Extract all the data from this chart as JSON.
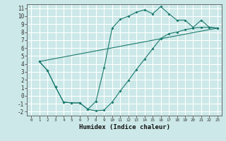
{
  "xlabel": "Humidex (Indice chaleur)",
  "bg_color": "#cce8e8",
  "grid_color": "#ffffff",
  "line_color": "#1a7a6e",
  "xlim": [
    -0.5,
    23.5
  ],
  "ylim": [
    -2.5,
    11.5
  ],
  "xticks": [
    0,
    1,
    2,
    3,
    4,
    5,
    6,
    7,
    8,
    9,
    10,
    11,
    12,
    13,
    14,
    15,
    16,
    17,
    18,
    19,
    20,
    21,
    22,
    23
  ],
  "yticks": [
    -2,
    -1,
    0,
    1,
    2,
    3,
    4,
    5,
    6,
    7,
    8,
    9,
    10,
    11
  ],
  "line1_x": [
    1,
    2,
    3,
    4,
    5,
    6,
    7,
    8,
    9,
    10,
    11,
    12,
    13,
    14,
    15,
    16,
    17,
    18,
    19,
    20,
    21,
    22,
    23
  ],
  "line1_y": [
    4.3,
    3.2,
    1.1,
    -0.8,
    -0.9,
    -0.9,
    -1.7,
    -0.7,
    3.5,
    8.5,
    9.6,
    10.0,
    10.5,
    10.8,
    10.3,
    11.2,
    10.3,
    9.5,
    9.5,
    8.6,
    9.5,
    8.6,
    8.5
  ],
  "line2_x": [
    1,
    2,
    3,
    4,
    5,
    6,
    7,
    8,
    9,
    10,
    11,
    12,
    13,
    14,
    15,
    16,
    17,
    18,
    19,
    20,
    21,
    22,
    23
  ],
  "line2_y": [
    4.3,
    3.2,
    1.1,
    -0.8,
    -0.9,
    -0.9,
    -1.7,
    -1.9,
    -1.8,
    -0.8,
    0.6,
    1.9,
    3.3,
    4.6,
    5.9,
    7.2,
    7.8,
    8.0,
    8.3,
    8.5,
    8.6,
    8.6,
    8.5
  ],
  "line3_x": [
    1,
    23
  ],
  "line3_y": [
    4.3,
    8.5
  ]
}
